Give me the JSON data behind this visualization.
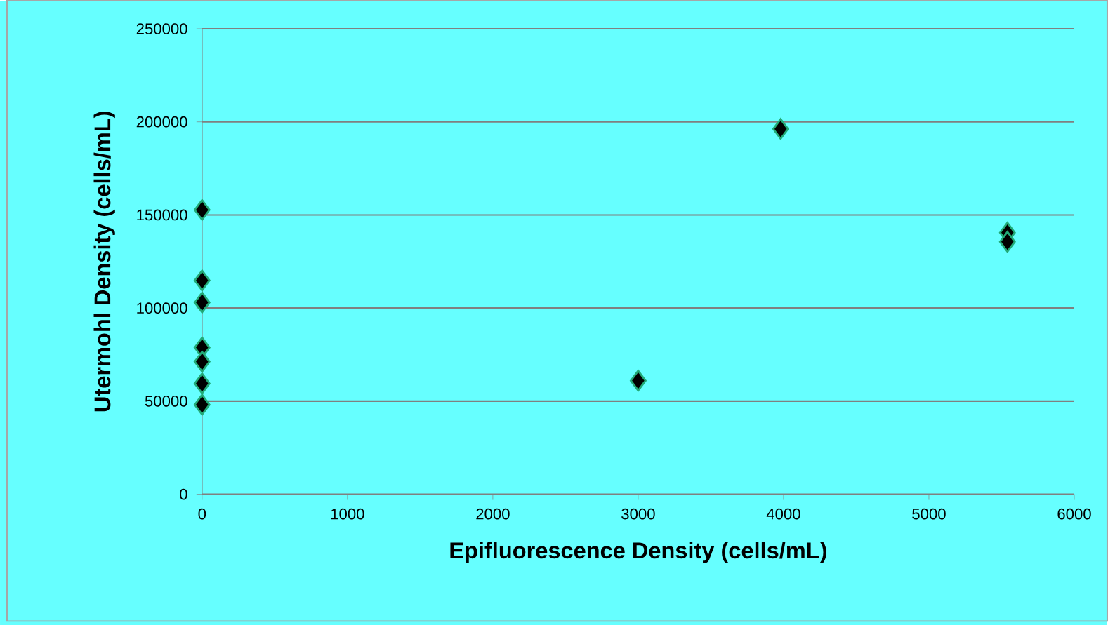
{
  "chart_data": {
    "type": "scatter",
    "xlabel": "Epifluorescence Density (cells/mL)",
    "ylabel": "Utermohl Density (cells/mL)",
    "x": [
      0,
      0,
      0,
      0,
      0,
      0,
      0,
      3000,
      3980,
      5540,
      5540
    ],
    "values": [
      152700,
      114800,
      103000,
      78800,
      71200,
      59500,
      48100,
      61000,
      196200,
      140500,
      135600
    ],
    "color": "#000000",
    "marker": "diamond",
    "xlim": [
      0,
      6000
    ],
    "xticks": [
      0,
      1000,
      2000,
      3000,
      4000,
      5000,
      6000
    ],
    "ylim": [
      0,
      250000
    ],
    "yticks": [
      0,
      50000,
      100000,
      150000,
      200000,
      250000
    ],
    "grid": "y"
  }
}
